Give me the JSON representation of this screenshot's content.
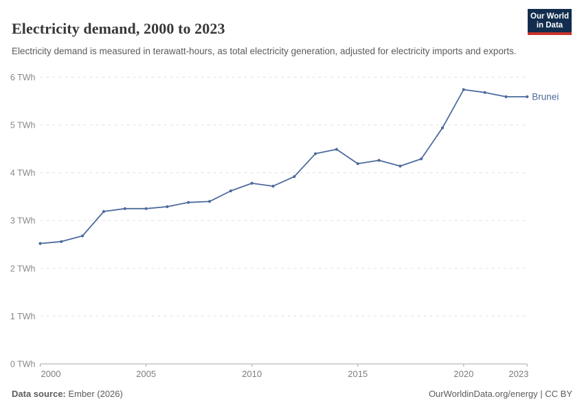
{
  "header": {
    "title": "Electricity demand, 2000 to 2023",
    "subtitle": "Electricity demand is measured in terawatt-hours, as total electricity generation, adjusted for electricity imports and exports.",
    "logo": {
      "line1": "Our World",
      "line2": "in Data",
      "bg_color": "#122D4E",
      "accent_color": "#C8332B"
    }
  },
  "footer": {
    "source_label": "Data source:",
    "source_value": " Ember (2026)",
    "link_text": "OurWorldinData.org/energy | CC BY"
  },
  "chart_data": {
    "type": "line",
    "title": "Electricity demand, 2000 to 2023",
    "unit": "TWh",
    "xlabel": "",
    "ylabel": "",
    "xlim": [
      2000,
      2023
    ],
    "ylim": [
      0,
      6
    ],
    "grid": "horizontal-dashed",
    "legend_position": "end-of-line-label",
    "x_ticks": [
      2000,
      2005,
      2010,
      2015,
      2020,
      2023
    ],
    "y_ticks": [
      0,
      1,
      2,
      3,
      4,
      5,
      6
    ],
    "y_tick_suffix": " TWh",
    "x": [
      2000,
      2001,
      2002,
      2003,
      2004,
      2005,
      2006,
      2007,
      2008,
      2009,
      2010,
      2011,
      2012,
      2013,
      2014,
      2015,
      2016,
      2017,
      2018,
      2019,
      2020,
      2021,
      2022,
      2023
    ],
    "series": [
      {
        "name": "Brunei",
        "color": "#4C6A9C",
        "values": [
          2.52,
          2.56,
          2.68,
          3.19,
          3.25,
          3.25,
          3.29,
          3.38,
          3.4,
          3.62,
          3.78,
          3.72,
          3.92,
          4.4,
          4.49,
          4.19,
          4.26,
          4.14,
          4.29,
          4.94,
          5.74,
          5.68,
          5.59,
          5.59
        ]
      }
    ],
    "axis_color": "#a8a8a8",
    "grid_color": "#e0e0e0"
  }
}
